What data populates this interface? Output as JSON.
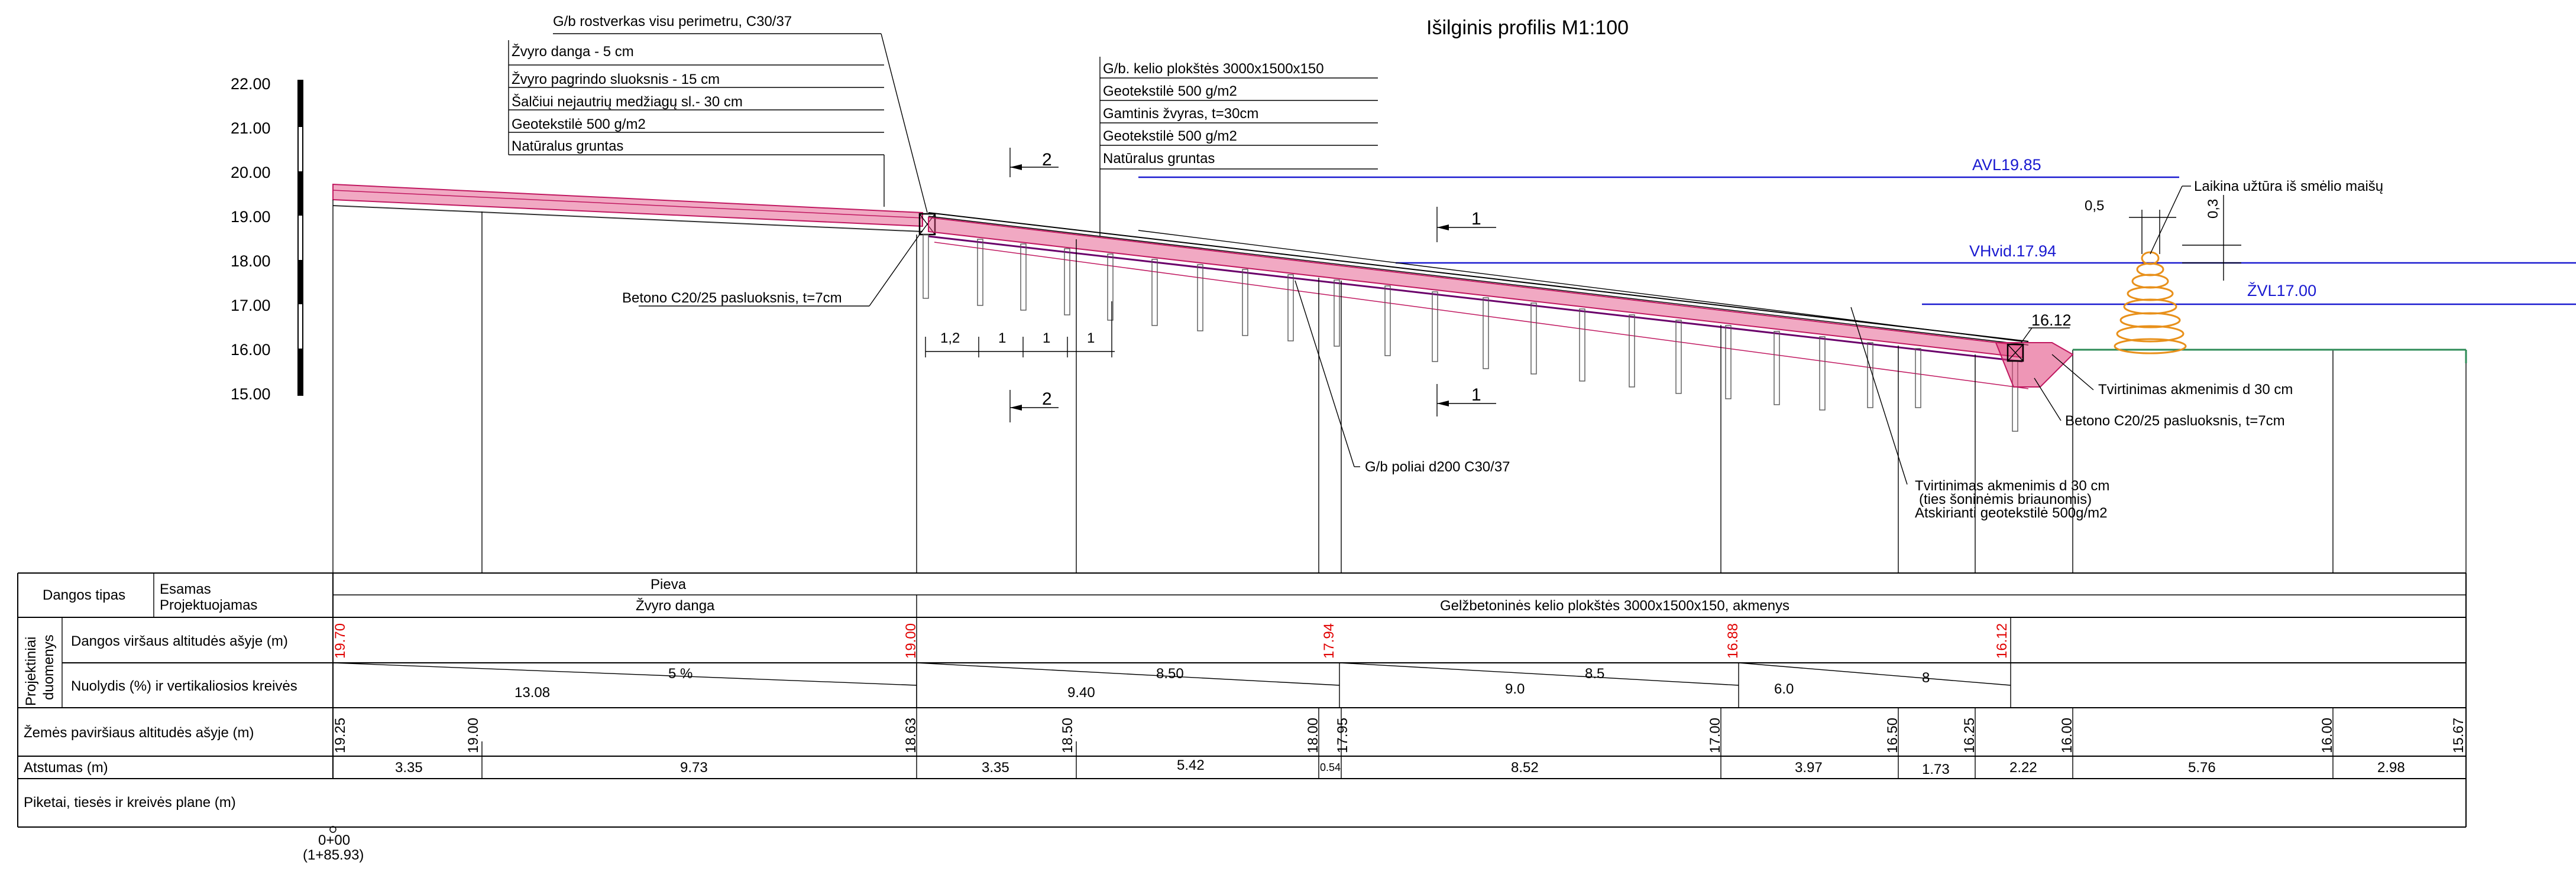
{
  "title": "Išilginis profilis M1:100",
  "scale_ticks": [
    "22.00",
    "21.00",
    "20.00",
    "19.00",
    "18.00",
    "17.00",
    "16.00",
    "15.00"
  ],
  "left_section": {
    "rostverkas": "G/b rostverkas visu perimetru, C30/37",
    "layers": [
      "Žvyro danga - 5 cm",
      "Žvyro pagrindo sluoksnis - 15 cm",
      "Šalčiui nejautrių medžiagų sl.- 30 cm",
      "Geotekstilė 500 g/m2",
      "Natūralus gruntas"
    ],
    "concrete": "Betono C20/25 pasluoksnis, t=7cm",
    "dims": [
      "1,2",
      "1",
      "1",
      "1"
    ]
  },
  "mid_section": {
    "layers": [
      "G/b. kelio plokštės 3000x1500x150",
      "Geotekstilė 500 g/m2",
      "Gamtinis žvyras, t=30cm",
      "Geotekstilė 500 g/m2",
      "Natūralus gruntas"
    ],
    "piles": "G/b poliai d200 C30/37",
    "stone_fix_lines": [
      "Tvirtinimas akmenimis d 30 cm",
      "(ties šoninėmis briaunomis)",
      "Atskirianti geotekstilė 500g/m2"
    ]
  },
  "right_section": {
    "sandbag": "Laikina užtūra iš smėlio maišų",
    "dim_05": "0,5",
    "dim_03": "0,3",
    "level_1612": "16.12",
    "stone_fix": "Tvirtinimas akmenimis d 30 cm",
    "concrete": "Betono C20/25 pasluoksnis, t=7cm"
  },
  "water_levels": {
    "avl": "AVL19.85",
    "vhvid": "VHvid.17.94",
    "zvl": "ŽVL17.00"
  },
  "colors": {
    "water": "#1a1ad0",
    "design": "#e00000",
    "fill": "#e0407a",
    "sandbag": "#e8901a",
    "ground": "#2e8b57"
  },
  "section_marks": {
    "s1": "1",
    "s2": "2"
  },
  "table": {
    "row_dangos": "Dangos tipas",
    "row_esamas": "Esamas",
    "row_projektuojamas": "Projektuojamas",
    "esamas_value": "Pieva",
    "proj_values": [
      "Žvyro danga",
      "Gelžbetoninės kelio plokštės 3000x1500x150, akmenys"
    ],
    "group_label": [
      "Projektiniai",
      "duomenys"
    ],
    "row_design_alt": "Dangos viršaus altitudės ašyje (m)",
    "design_alts": [
      "19.70",
      "19.00",
      "17.94",
      "16.88",
      "16.12"
    ],
    "row_slope": "Nuolydis (%) ir vertikaliosios kreivės",
    "slopes_top": [
      "5 %",
      "8.50",
      "8.5",
      "8"
    ],
    "slopes_bottom": [
      "13.08",
      "9.40",
      "9.0",
      "6.0"
    ],
    "row_ground": "Žemės paviršiaus altitudės  ašyje (m)",
    "ground_alts": [
      "19.25",
      "19.00",
      "18.63",
      "18.50",
      "18.00",
      "17.95",
      "17.00",
      "16.50",
      "16.25",
      "16.00",
      "16.00",
      "15.67"
    ],
    "row_dist": "Atstumas (m)",
    "distances": [
      "3.35",
      "9.73",
      "3.35",
      "5.42",
      "0.54",
      "8.52",
      "3.97",
      "1.73",
      "2.22",
      "5.76",
      "2.98"
    ],
    "row_piket": "Piketai, tiesės ir kreivės plane (m)",
    "chainage": "0+00",
    "chainage_sub": "(1+85.93)"
  }
}
